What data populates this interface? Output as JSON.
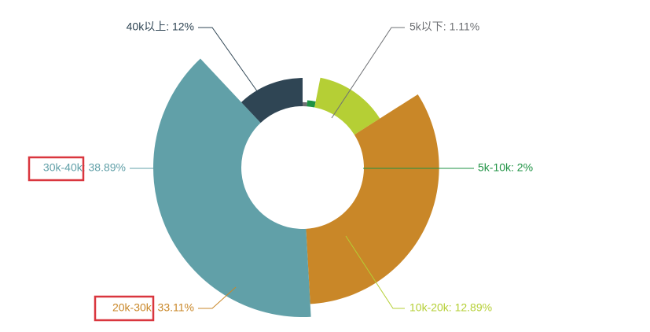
{
  "chart_data": {
    "type": "pie",
    "variant": "nightingale-rose-donut",
    "title": "",
    "legend": "none",
    "slices": [
      {
        "name": "5k以下",
        "value": 1.11,
        "label": "5k以下: 1.11%",
        "color": "#6e7074"
      },
      {
        "name": "5k-10k",
        "value": 2,
        "label": "5k-10k: 2%",
        "color": "#1e9243"
      },
      {
        "name": "10k-20k",
        "value": 12.89,
        "label": "10k-20k: 12.89%",
        "color": "#b5cf35"
      },
      {
        "name": "20k-30k",
        "value": 33.11,
        "label": "20k-30k: 33.11%",
        "color": "#c98728"
      },
      {
        "name": "30k-40k",
        "value": 38.89,
        "label": "30k-40k: 38.89%",
        "color": "#61a0a8"
      },
      {
        "name": "40k以上",
        "value": 12,
        "label": "40k以上: 12%",
        "color": "#2f4554"
      }
    ],
    "highlighted": [
      "30k-40k",
      "20k-30k"
    ],
    "highlight_color": "#d9363e"
  }
}
